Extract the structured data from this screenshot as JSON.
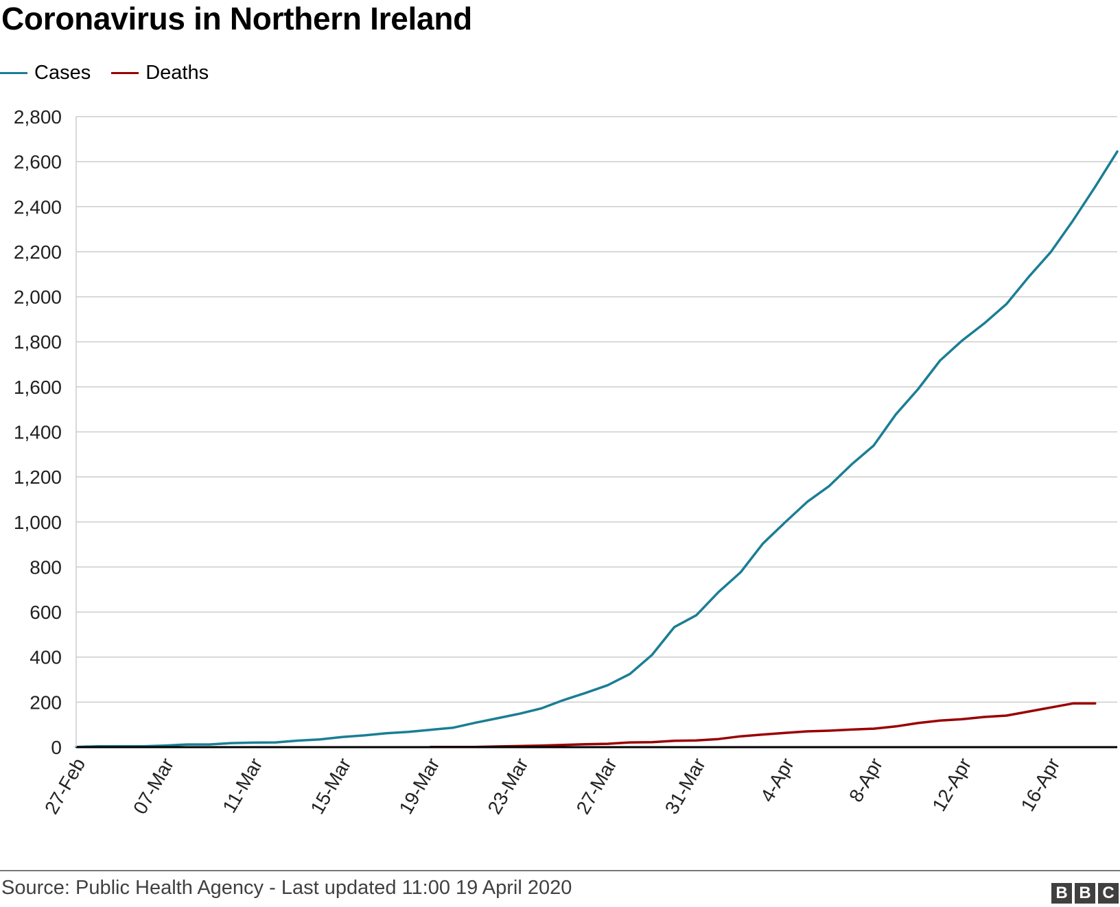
{
  "title": "Coronavirus in Northern Ireland",
  "source": "Source: Public Health Agency - Last updated 11:00 19 April 2020",
  "logo_letters": [
    "B",
    "B",
    "C"
  ],
  "colors": {
    "cases": "#1a7e94",
    "deaths": "#990000",
    "grid": "#cccccc",
    "axis": "#000000"
  },
  "legend": [
    {
      "name": "Cases",
      "color": "#1a7e94"
    },
    {
      "name": "Deaths",
      "color": "#990000"
    }
  ],
  "chart_data": {
    "type": "line",
    "title": "Coronavirus in Northern Ireland",
    "xlabel": "",
    "ylabel": "",
    "ylim": [
      0,
      2800
    ],
    "y_ticks": [
      0,
      200,
      400,
      600,
      800,
      1000,
      1200,
      1400,
      1600,
      1800,
      2000,
      2200,
      2400,
      2600,
      2800
    ],
    "y_tick_labels": [
      "0",
      "200",
      "400",
      "600",
      "800",
      "1,000",
      "1,200",
      "1,400",
      "1,600",
      "1,800",
      "2,000",
      "2,200",
      "2,400",
      "2,600",
      "2,800"
    ],
    "x_count": 48,
    "x_tick_indices": [
      0,
      4,
      8,
      12,
      16,
      20,
      24,
      28,
      32,
      36,
      40,
      44
    ],
    "x_tick_labels": [
      "27-Feb",
      "07-Mar",
      "11-Mar",
      "15-Mar",
      "19-Mar",
      "23-Mar",
      "27-Mar",
      "31-Mar",
      "4-Apr",
      "8-Apr",
      "12-Apr",
      "16-Apr"
    ],
    "grid": true,
    "legend_position": "top-left",
    "series": [
      {
        "name": "Cases",
        "start_index": 0,
        "values": [
          1,
          4,
          4,
          4,
          7,
          12,
          12,
          18,
          20,
          21,
          29,
          34,
          45,
          52,
          62,
          68,
          77,
          86,
          108,
          128,
          148,
          172,
          209,
          241,
          275,
          325,
          410,
          533,
          586,
          689,
          777,
          904,
          998,
          1089,
          1160,
          1255,
          1339,
          1477,
          1589,
          1717,
          1806,
          1882,
          1968,
          2088,
          2199,
          2338,
          2488,
          2645
        ]
      },
      {
        "name": "Deaths",
        "start_index": 16,
        "values": [
          1,
          1,
          1,
          3,
          5,
          7,
          10,
          13,
          15,
          21,
          22,
          28,
          30,
          36,
          48,
          56,
          63,
          70,
          73,
          78,
          82,
          92,
          107,
          118,
          124,
          134,
          140,
          158,
          176,
          194,
          194
        ]
      }
    ]
  }
}
